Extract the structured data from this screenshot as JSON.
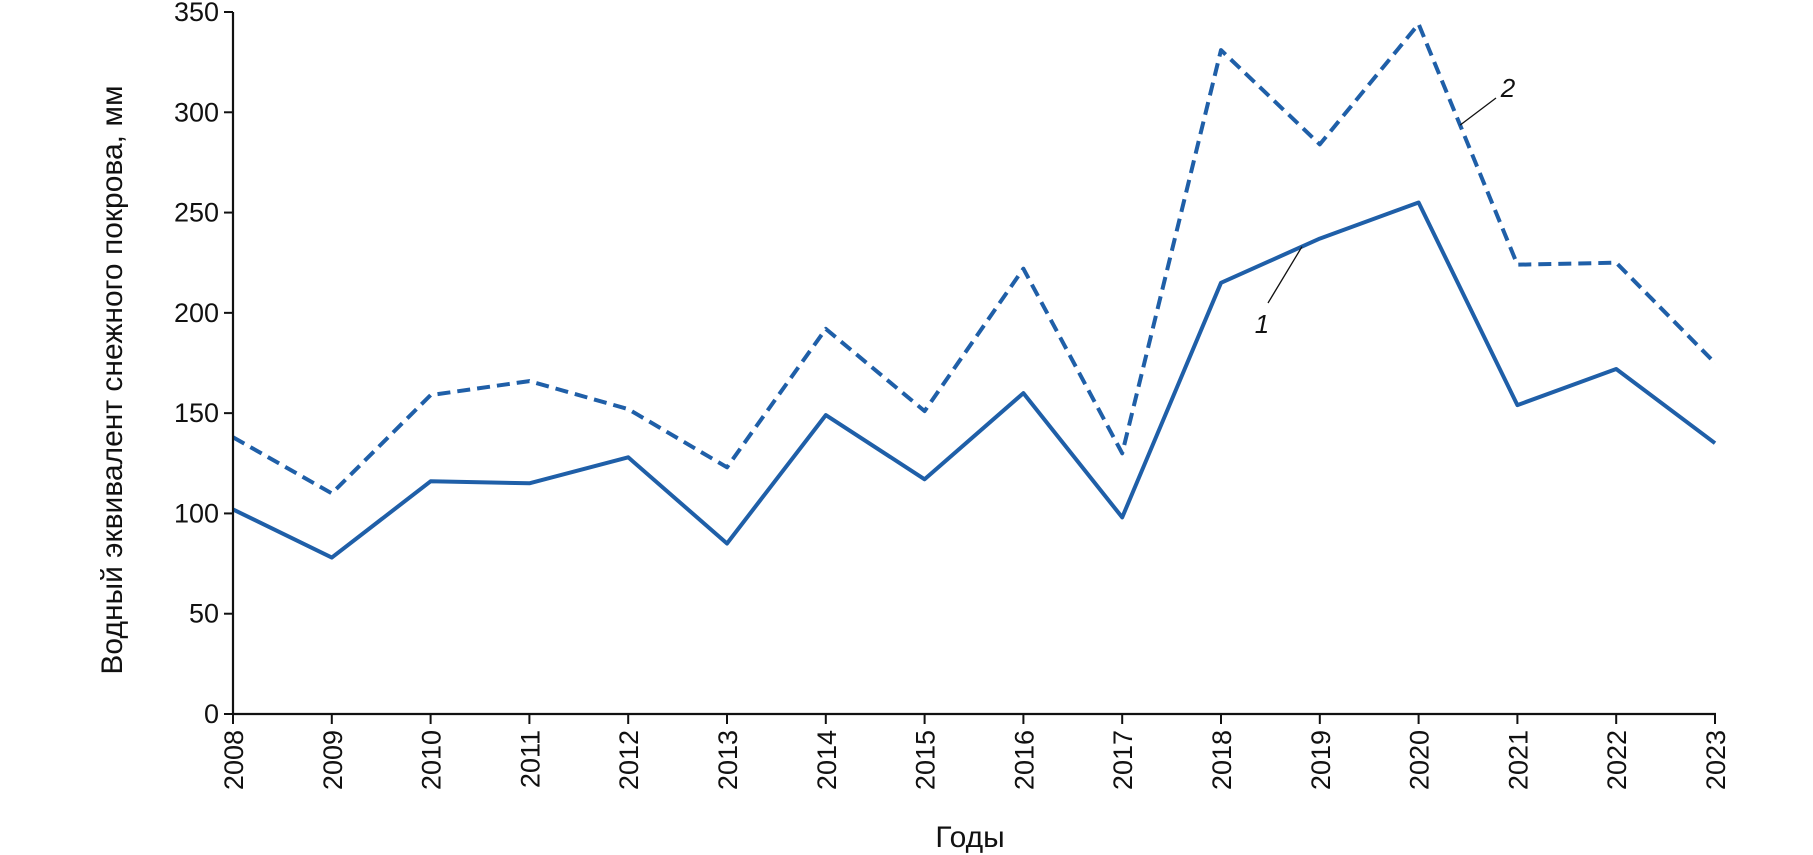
{
  "chart_data": {
    "type": "line",
    "xlabel": "Годы",
    "ylabel": "Водный эквивалент снежного покрова, мм",
    "x": [
      2008,
      2009,
      2010,
      2011,
      2012,
      2013,
      2014,
      2015,
      2016,
      2017,
      2018,
      2019,
      2020,
      2021,
      2022,
      2023
    ],
    "ylim": [
      0,
      350
    ],
    "yticks": [
      0,
      50,
      100,
      150,
      200,
      250,
      300,
      350
    ],
    "grid": false,
    "legend": "none",
    "series": [
      {
        "name": "1",
        "style": "solid",
        "color": "#1f5fa8",
        "values": [
          102,
          78,
          116,
          115,
          128,
          85,
          149,
          117,
          160,
          98,
          215,
          237,
          255,
          154,
          172,
          135
        ]
      },
      {
        "name": "2",
        "style": "dashed",
        "color": "#1f5fa8",
        "values": [
          138,
          110,
          159,
          166,
          152,
          123,
          192,
          151,
          222,
          130,
          331,
          284,
          344,
          224,
          225,
          175
        ]
      }
    ]
  }
}
